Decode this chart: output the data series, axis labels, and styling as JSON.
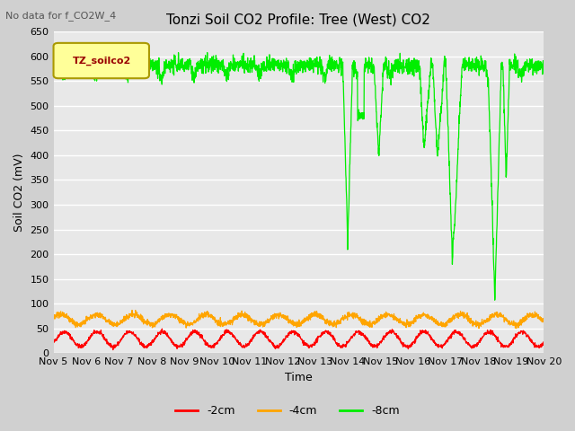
{
  "title": "Tonzi Soil CO2 Profile: Tree (West) CO2",
  "ylabel": "Soil CO2 (mV)",
  "xlabel": "Time",
  "no_data_text": "No data for f_CO2W_4",
  "legend_label": "TZ_soilco2",
  "ylim": [
    0,
    650
  ],
  "yticks": [
    0,
    50,
    100,
    150,
    200,
    250,
    300,
    350,
    400,
    450,
    500,
    550,
    600,
    650
  ],
  "xtick_labels": [
    "Nov 5",
    "Nov 6",
    "Nov 7",
    "Nov 8",
    "Nov 9",
    "Nov 10",
    "Nov 11",
    "Nov 12",
    "Nov 13",
    "Nov 14",
    "Nov 15",
    "Nov 16",
    "Nov 17",
    "Nov 18",
    "Nov 19",
    "Nov 20"
  ],
  "line_colors": {
    "cm2": "#ff0000",
    "cm4": "#ffa500",
    "cm8": "#00ee00"
  },
  "legend_labels": {
    "-2cm": "-2cm",
    "-4cm": "-4cm",
    "-8cm": "-8cm"
  },
  "background_color": "#e8e8e8",
  "grid_color": "#ffffff",
  "title_fontsize": 11,
  "axis_fontsize": 9,
  "tick_fontsize": 8
}
